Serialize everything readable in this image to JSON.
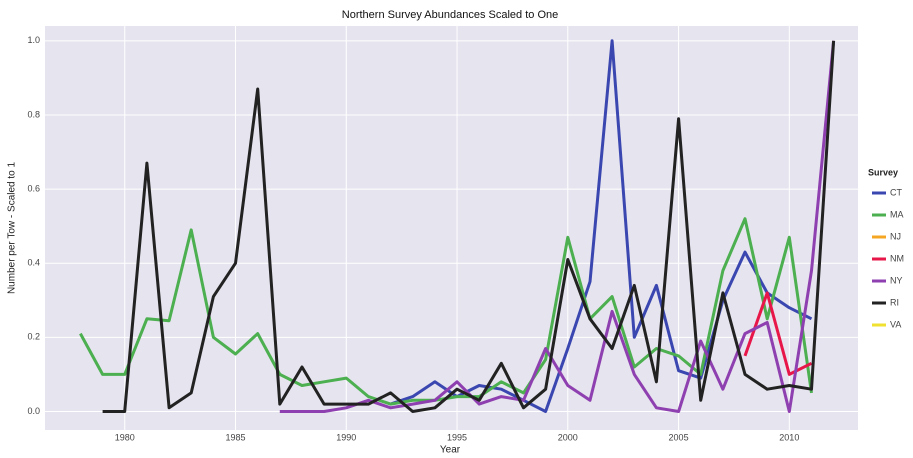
{
  "chart_data": {
    "type": "line",
    "title": "Northern Survey Abundances Scaled to One",
    "x_label": "Year",
    "y_label": "Number per Tow - Scaled to 1",
    "legend_title": "Survey",
    "legend_position": "right",
    "grid": true,
    "background": "#e6e4ee",
    "x": [
      1978,
      1979,
      1980,
      1981,
      1982,
      1983,
      1984,
      1985,
      1986,
      1987,
      1988,
      1989,
      1990,
      1991,
      1992,
      1993,
      1994,
      1995,
      1996,
      1997,
      1998,
      1999,
      2000,
      2001,
      2002,
      2003,
      2004,
      2005,
      2006,
      2007,
      2008,
      2009,
      2010,
      2011,
      2012
    ],
    "xlim": [
      1976.4,
      2013.1
    ],
    "xticks": [
      1980,
      1985,
      1990,
      1995,
      2000,
      2005,
      2010
    ],
    "ylim": [
      -0.05,
      1.04
    ],
    "yticks": [
      {
        "value": 0,
        "label": "0.0"
      },
      {
        "value": 0.2,
        "label": "0.2"
      },
      {
        "value": 0.4,
        "label": "0.4"
      },
      {
        "value": 0.6,
        "label": "0.6"
      },
      {
        "value": 0.8,
        "label": "0.8"
      },
      {
        "value": 1,
        "label": "1.0"
      }
    ],
    "series": [
      {
        "name": "CT",
        "color": "#3b47b0",
        "values": [
          null,
          null,
          null,
          null,
          null,
          null,
          null,
          null,
          null,
          null,
          null,
          null,
          null,
          null,
          0.02,
          0.04,
          0.08,
          0.04,
          0.07,
          0.06,
          0.03,
          0.0,
          0.17,
          0.35,
          1.0,
          0.2,
          0.34,
          0.11,
          0.09,
          0.3,
          0.43,
          0.32,
          0.28,
          0.25,
          null
        ]
      },
      {
        "name": "MA",
        "color": "#4caf50",
        "values": [
          0.21,
          0.1,
          0.1,
          0.25,
          0.245,
          0.49,
          0.2,
          0.155,
          0.21,
          0.1,
          0.07,
          0.08,
          0.09,
          0.04,
          0.02,
          0.03,
          0.03,
          0.04,
          0.04,
          0.08,
          0.05,
          0.14,
          0.47,
          0.25,
          0.31,
          0.12,
          0.17,
          0.15,
          0.1,
          0.38,
          0.52,
          0.25,
          0.47,
          0.05,
          null
        ]
      },
      {
        "name": "NJ",
        "color": "#f5a623",
        "values": [
          null,
          null,
          null,
          null,
          null,
          null,
          null,
          null,
          null,
          null,
          null,
          null,
          null,
          null,
          null,
          null,
          null,
          null,
          null,
          null,
          null,
          null,
          null,
          null,
          null,
          null,
          null,
          null,
          null,
          null,
          null,
          null,
          null,
          null,
          null
        ]
      },
      {
        "name": "NM",
        "color": "#e8174a",
        "values": [
          null,
          null,
          null,
          null,
          null,
          null,
          null,
          null,
          null,
          null,
          null,
          null,
          null,
          null,
          null,
          null,
          null,
          null,
          null,
          null,
          null,
          null,
          null,
          null,
          null,
          null,
          null,
          null,
          null,
          null,
          0.15,
          0.32,
          0.1,
          0.13,
          null
        ]
      },
      {
        "name": "NY",
        "color": "#8e3fb0",
        "values": [
          null,
          null,
          null,
          null,
          null,
          null,
          null,
          null,
          null,
          0.0,
          0.0,
          0.0,
          0.01,
          0.03,
          0.01,
          0.02,
          0.03,
          0.08,
          0.02,
          0.04,
          0.03,
          0.17,
          0.07,
          0.03,
          0.27,
          0.1,
          0.01,
          0.0,
          0.19,
          0.06,
          0.21,
          0.24,
          0.0,
          0.38,
          1.0
        ]
      },
      {
        "name": "RI",
        "color": "#222222",
        "values": [
          null,
          0.0,
          0.0,
          0.67,
          0.01,
          0.05,
          0.31,
          0.4,
          0.87,
          0.02,
          0.12,
          0.02,
          0.02,
          0.02,
          0.05,
          0.0,
          0.01,
          0.06,
          0.03,
          0.13,
          0.01,
          0.06,
          0.41,
          0.25,
          0.17,
          0.34,
          0.08,
          0.79,
          0.03,
          0.32,
          0.1,
          0.06,
          0.07,
          0.06,
          1.0
        ]
      },
      {
        "name": "VA",
        "color": "#f0e030",
        "values": [
          null,
          null,
          null,
          null,
          null,
          null,
          null,
          null,
          null,
          null,
          null,
          null,
          null,
          null,
          null,
          null,
          null,
          null,
          null,
          null,
          null,
          null,
          null,
          null,
          null,
          null,
          null,
          null,
          null,
          null,
          null,
          null,
          null,
          null,
          null
        ]
      }
    ]
  }
}
